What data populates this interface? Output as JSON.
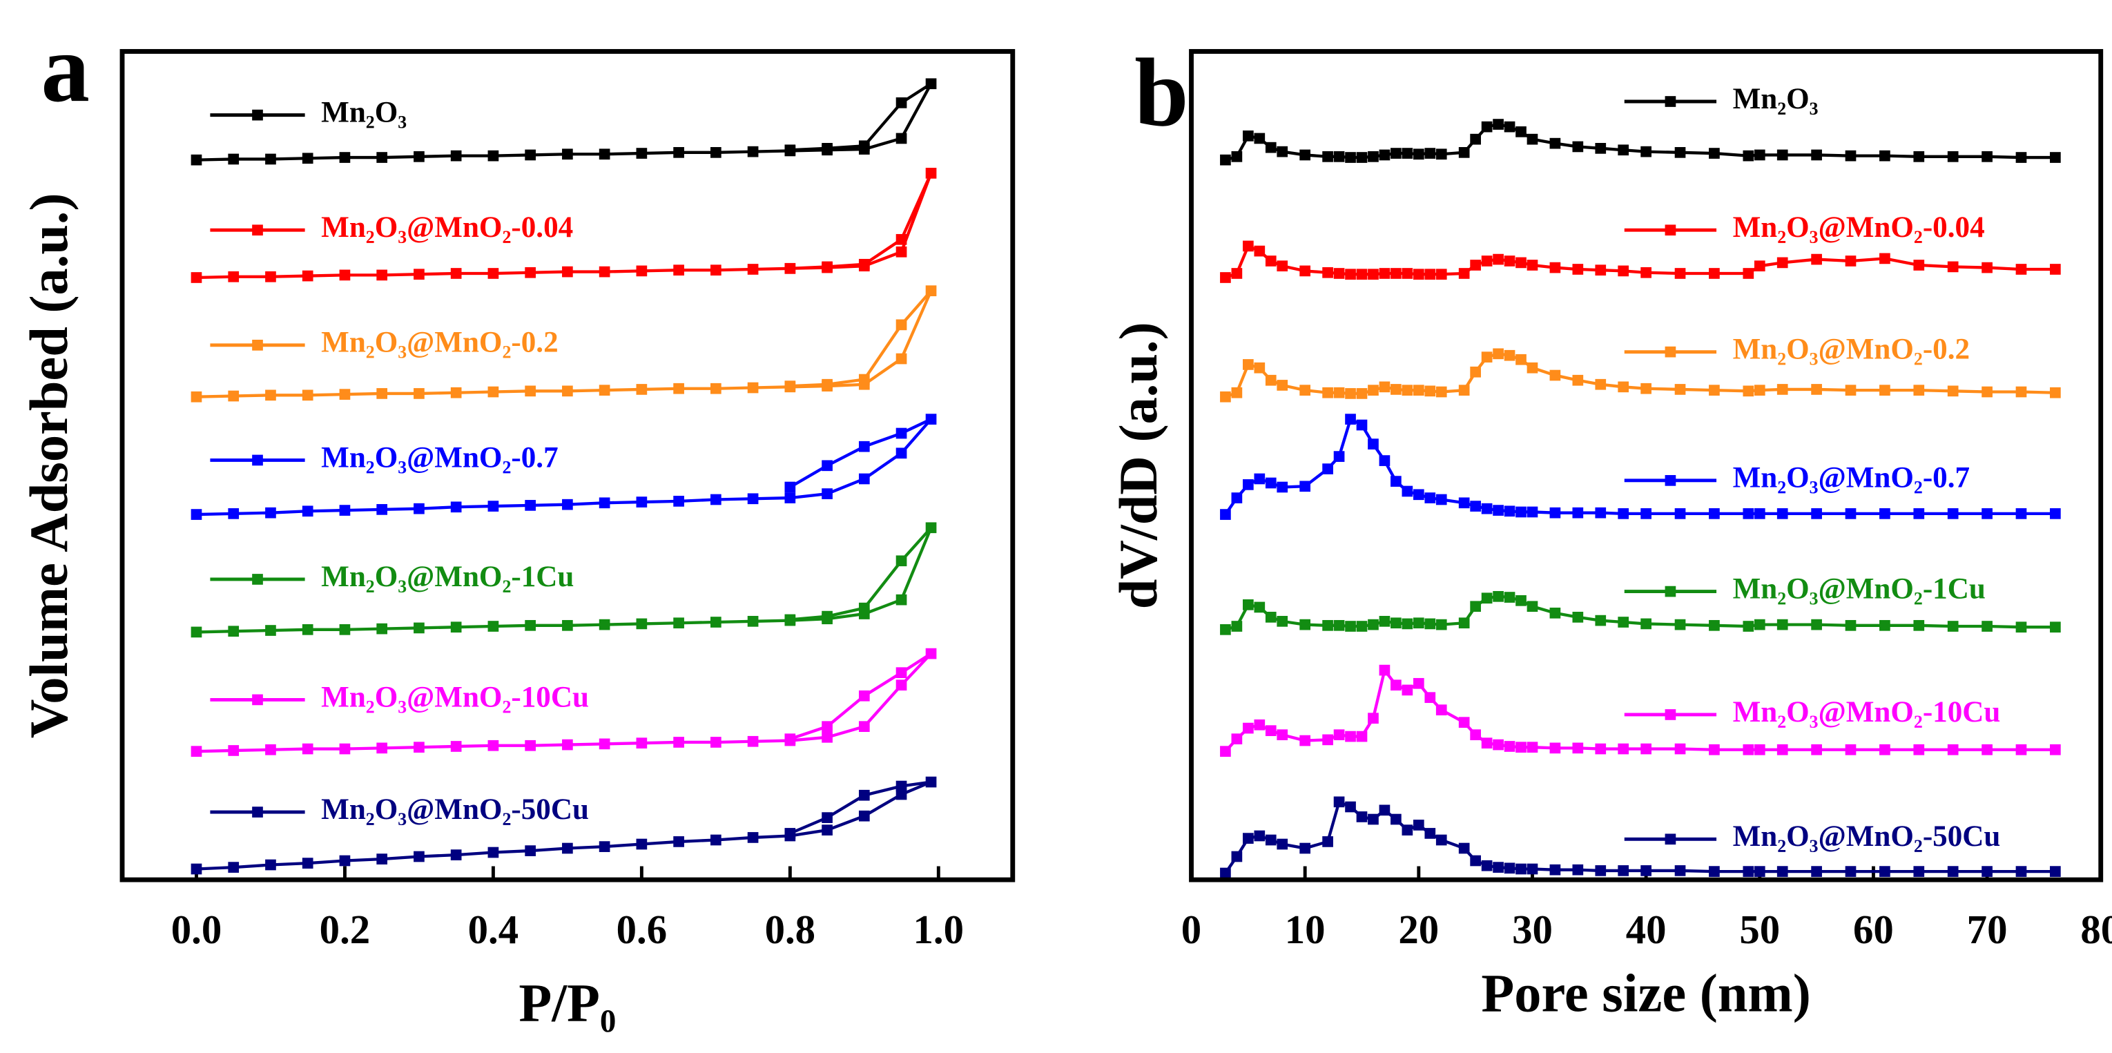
{
  "chart_data": [
    {
      "type": "line",
      "panel_label": "a",
      "x_label": "P/P₀",
      "y_label": "Volume Adsorbed (a.u.)",
      "xlim": [
        -0.1,
        1.1
      ],
      "ylim": [
        0,
        100
      ],
      "xticks": [
        {
          "value": 0,
          "label": "0.0"
        },
        0.2,
        0.4,
        0.6,
        0.8,
        {
          "value": 1,
          "label": "1.0"
        }
      ],
      "x": [
        0,
        0.05,
        0.1,
        0.15,
        0.2,
        0.25,
        0.3,
        0.35,
        0.4,
        0.45,
        0.5,
        0.55,
        0.6,
        0.65,
        0.7,
        0.75,
        0.8,
        0.85,
        0.9,
        0.95,
        0.99,
        0.95,
        0.9,
        0.85,
        0.8
      ],
      "series": [
        {
          "name": "Mn₂O₃",
          "color": "#000000",
          "values": [
            86.9,
            87.0,
            87.0,
            87.1,
            87.2,
            87.2,
            87.3,
            87.4,
            87.4,
            87.5,
            87.6,
            87.6,
            87.7,
            87.8,
            87.8,
            87.9,
            88.0,
            88.1,
            88.2,
            89.5,
            96.1,
            93.8,
            88.6,
            88.3,
            88.1
          ]
        },
        {
          "name": "Mn₂O₃@MnO₂-0.04",
          "color": "#ff0000",
          "values": [
            72.7,
            72.8,
            72.8,
            72.9,
            73.0,
            73.0,
            73.1,
            73.2,
            73.2,
            73.3,
            73.4,
            73.4,
            73.5,
            73.6,
            73.6,
            73.7,
            73.8,
            73.9,
            74.1,
            75.8,
            85.3,
            77.3,
            74.3,
            74.0,
            73.8
          ]
        },
        {
          "name": "Mn₂O₃@MnO₂-0.2",
          "color": "#ff8c1a",
          "values": [
            58.3,
            58.4,
            58.5,
            58.5,
            58.6,
            58.7,
            58.7,
            58.8,
            58.9,
            59.0,
            59.0,
            59.1,
            59.2,
            59.3,
            59.3,
            59.4,
            59.5,
            59.6,
            59.8,
            62.9,
            71.1,
            67.0,
            60.4,
            59.8,
            59.6
          ]
        },
        {
          "name": "Mn₂O₃@MnO₂-0.7",
          "color": "#0000ff",
          "values": [
            44.1,
            44.2,
            44.3,
            44.5,
            44.6,
            44.7,
            44.8,
            45.0,
            45.1,
            45.2,
            45.3,
            45.5,
            45.6,
            45.7,
            45.9,
            46.0,
            46.1,
            46.6,
            48.4,
            51.5,
            55.6,
            53.9,
            52.3,
            50.0,
            47.4
          ]
        },
        {
          "name": "Mn₂O₃@MnO₂-1Cu",
          "color": "#128c12",
          "values": [
            29.9,
            30.0,
            30.1,
            30.2,
            30.2,
            30.3,
            30.4,
            30.5,
            30.6,
            30.7,
            30.7,
            30.8,
            30.9,
            31.0,
            31.1,
            31.2,
            31.3,
            31.5,
            32.1,
            33.8,
            42.5,
            38.5,
            32.8,
            31.8,
            31.4
          ]
        },
        {
          "name": "Mn₂O₃@MnO₂-10Cu",
          "color": "#ff00ff",
          "values": [
            15.5,
            15.6,
            15.7,
            15.8,
            15.8,
            15.9,
            16.0,
            16.1,
            16.2,
            16.2,
            16.3,
            16.4,
            16.5,
            16.6,
            16.6,
            16.7,
            16.8,
            17.2,
            18.5,
            23.5,
            27.3,
            25.0,
            22.2,
            18.5,
            17.0
          ]
        },
        {
          "name": "Mn₂O₃@MnO₂-50Cu",
          "color": "#000080",
          "values": [
            1.3,
            1.5,
            1.8,
            2.0,
            2.3,
            2.5,
            2.8,
            3.0,
            3.3,
            3.5,
            3.8,
            4.0,
            4.3,
            4.6,
            4.8,
            5.1,
            5.3,
            6.0,
            7.7,
            10.3,
            11.8,
            11.3,
            10.2,
            7.5,
            5.6
          ]
        }
      ]
    },
    {
      "type": "line",
      "panel_label": "b",
      "x_label": "Pore size (nm)",
      "y_label": "dV/dD (a.u.)",
      "xlim": [
        0,
        80
      ],
      "ylim": [
        0,
        100
      ],
      "xticks": [
        0,
        10,
        20,
        30,
        40,
        50,
        60,
        70,
        80
      ],
      "x": [
        3,
        4,
        5,
        6,
        7,
        8,
        10,
        12,
        13,
        14,
        15,
        16,
        17,
        18,
        19,
        20,
        21,
        22,
        24,
        25,
        26,
        27,
        28,
        29,
        30,
        32,
        34,
        36,
        38,
        40,
        43,
        46,
        49,
        50,
        52,
        55,
        58,
        61,
        64,
        67,
        70,
        73,
        76
      ],
      "series": [
        {
          "name": "Mn₂O₃",
          "color": "#000000",
          "values": [
            86.9,
            87.3,
            89.8,
            89.5,
            88.4,
            87.9,
            87.5,
            87.3,
            87.3,
            87.2,
            87.2,
            87.3,
            87.5,
            87.7,
            87.7,
            87.6,
            87.7,
            87.6,
            87.8,
            89.4,
            90.9,
            91.2,
            90.9,
            90.3,
            89.4,
            88.9,
            88.5,
            88.3,
            88.1,
            87.9,
            87.8,
            87.7,
            87.4,
            87.5,
            87.5,
            87.5,
            87.4,
            87.4,
            87.3,
            87.3,
            87.3,
            87.2,
            87.2
          ]
        },
        {
          "name": "Mn₂O₃@MnO₂-0.04",
          "color": "#ff0000",
          "values": [
            72.7,
            73.2,
            76.5,
            75.9,
            74.7,
            74.1,
            73.5,
            73.3,
            73.2,
            73.1,
            73.1,
            73.1,
            73.2,
            73.2,
            73.2,
            73.1,
            73.1,
            73.1,
            73.2,
            74.2,
            74.7,
            74.9,
            74.7,
            74.5,
            74.2,
            73.9,
            73.7,
            73.6,
            73.5,
            73.3,
            73.2,
            73.2,
            73.2,
            74.1,
            74.5,
            74.9,
            74.7,
            75.0,
            74.2,
            74.0,
            73.9,
            73.7,
            73.7
          ]
        },
        {
          "name": "Mn₂O₃@MnO₂-0.2",
          "color": "#ff8c1a",
          "values": [
            58.3,
            58.8,
            62.2,
            61.8,
            60.3,
            59.7,
            59.1,
            58.8,
            58.8,
            58.7,
            58.7,
            59.1,
            59.5,
            59.2,
            59.1,
            59.1,
            59.0,
            58.9,
            59.1,
            61.3,
            63.1,
            63.5,
            63.3,
            62.8,
            61.8,
            60.9,
            60.3,
            59.8,
            59.5,
            59.3,
            59.2,
            59.1,
            59.0,
            59.1,
            59.2,
            59.2,
            59.1,
            59.1,
            59.1,
            59.0,
            58.9,
            58.9,
            58.8
          ]
        },
        {
          "name": "Mn₂O₃@MnO₂-0.7",
          "color": "#0000ff",
          "values": [
            44.1,
            46.1,
            47.7,
            48.4,
            47.9,
            47.4,
            47.5,
            49.6,
            51.1,
            55.6,
            54.9,
            52.6,
            50.6,
            48.1,
            46.9,
            46.5,
            46.1,
            45.9,
            45.5,
            45.1,
            44.8,
            44.6,
            44.5,
            44.4,
            44.4,
            44.3,
            44.3,
            44.3,
            44.2,
            44.2,
            44.2,
            44.2,
            44.2,
            44.2,
            44.2,
            44.2,
            44.2,
            44.2,
            44.2,
            44.2,
            44.2,
            44.2,
            44.2
          ]
        },
        {
          "name": "Mn₂O₃@MnO₂-1Cu",
          "color": "#128c12",
          "values": [
            30.2,
            30.6,
            33.2,
            32.9,
            31.7,
            31.2,
            30.8,
            30.7,
            30.7,
            30.6,
            30.6,
            30.8,
            31.2,
            31.0,
            30.9,
            31.0,
            30.9,
            30.8,
            31.0,
            33.0,
            34.0,
            34.2,
            34.1,
            33.7,
            33.0,
            32.2,
            31.7,
            31.3,
            31.1,
            30.9,
            30.8,
            30.7,
            30.6,
            30.8,
            30.8,
            30.8,
            30.7,
            30.7,
            30.7,
            30.6,
            30.6,
            30.5,
            30.5
          ]
        },
        {
          "name": "Mn₂O₃@MnO₂-10Cu",
          "color": "#ff00ff",
          "values": [
            15.5,
            17.0,
            18.3,
            18.7,
            18.0,
            17.5,
            16.8,
            16.9,
            17.5,
            17.3,
            17.3,
            19.5,
            25.3,
            23.5,
            22.9,
            23.7,
            22.0,
            20.5,
            19.0,
            17.5,
            16.5,
            16.3,
            16.1,
            16.0,
            16.0,
            15.9,
            15.9,
            15.8,
            15.8,
            15.8,
            15.8,
            15.7,
            15.7,
            15.7,
            15.7,
            15.7,
            15.7,
            15.7,
            15.7,
            15.7,
            15.7,
            15.7,
            15.7
          ]
        },
        {
          "name": "Mn₂O₃@MnO₂-50Cu",
          "color": "#000080",
          "values": [
            0.8,
            2.8,
            5.0,
            5.3,
            4.8,
            4.3,
            3.8,
            4.6,
            9.4,
            8.8,
            7.6,
            7.3,
            8.4,
            7.3,
            6.0,
            6.6,
            5.6,
            4.8,
            3.8,
            2.3,
            1.7,
            1.5,
            1.4,
            1.3,
            1.3,
            1.2,
            1.2,
            1.1,
            1.1,
            1.1,
            1.1,
            1.0,
            1.0,
            1.0,
            1.0,
            1.0,
            1.0,
            1.0,
            1.0,
            1.0,
            1.0,
            1.0,
            1.0
          ]
        }
      ]
    }
  ]
}
